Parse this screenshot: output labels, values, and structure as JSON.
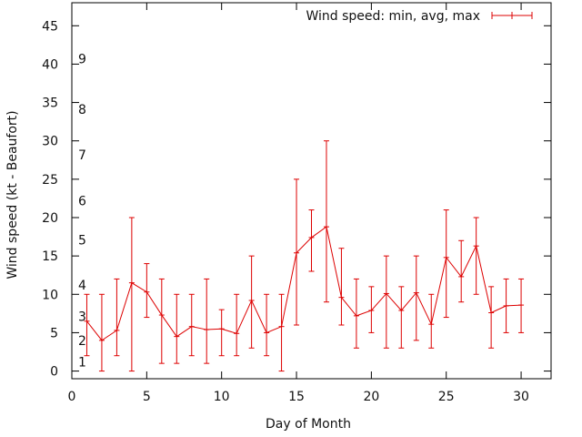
{
  "chart_data": {
    "type": "line",
    "title": "",
    "xlabel": "Day of Month",
    "ylabel": "Wind speed (kt - Beaufort)",
    "xlim": [
      0,
      32
    ],
    "ylim": [
      -1,
      48
    ],
    "x_ticks": [
      0,
      5,
      10,
      15,
      20,
      25,
      30
    ],
    "y_ticks": [
      0,
      5,
      10,
      15,
      20,
      25,
      30,
      35,
      40,
      45
    ],
    "grid": false,
    "legend_position": "top-right",
    "series": [
      {
        "name": "Wind speed: min, avg, max",
        "color": "#dd0000",
        "style": "error-bars-with-line",
        "x": [
          1,
          2,
          3,
          4,
          5,
          6,
          7,
          8,
          9,
          10,
          11,
          12,
          13,
          14,
          15,
          16,
          17,
          18,
          19,
          20,
          21,
          22,
          23,
          24,
          25,
          26,
          27,
          28,
          29,
          30
        ],
        "min": [
          2,
          0,
          2,
          0,
          7,
          1,
          1,
          2,
          1,
          2,
          2,
          3,
          2,
          0,
          6,
          13,
          9,
          6,
          3,
          5,
          3,
          3,
          4,
          3,
          7,
          9,
          10,
          3,
          5,
          5
        ],
        "avg": [
          6.5,
          4,
          5.3,
          11.5,
          10.3,
          7.3,
          4.5,
          5.8,
          5.4,
          5.5,
          4.9,
          9.2,
          5,
          5.8,
          15.4,
          17.4,
          18.8,
          9.6,
          7.2,
          7.9,
          10.1,
          7.9,
          10.2,
          6.1,
          14.8,
          12.3,
          16.3,
          7.6,
          8.5,
          8.6
        ],
        "max": [
          10,
          10,
          12,
          20,
          14,
          12,
          10,
          10,
          12,
          8,
          10,
          15,
          10,
          10,
          25,
          21,
          30,
          16,
          12,
          11,
          15,
          11,
          15,
          10,
          21,
          17,
          20,
          11,
          12,
          12
        ]
      }
    ],
    "beaufort_labels": [
      {
        "label": "1",
        "y": 1.2
      },
      {
        "label": "2",
        "y": 4
      },
      {
        "label": "3",
        "y": 7.1
      },
      {
        "label": "4",
        "y": 11.2
      },
      {
        "label": "5",
        "y": 17.1
      },
      {
        "label": "6",
        "y": 22.2
      },
      {
        "label": "7",
        "y": 28.2
      },
      {
        "label": "8",
        "y": 34.1
      },
      {
        "label": "9",
        "y": 40.7
      }
    ]
  }
}
